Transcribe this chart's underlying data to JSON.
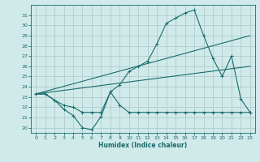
{
  "xlabel": "Humidex (Indice chaleur)",
  "xlim": [
    -0.5,
    23.5
  ],
  "ylim": [
    19.5,
    32.0
  ],
  "yticks": [
    20,
    21,
    22,
    23,
    24,
    25,
    26,
    27,
    28,
    29,
    30,
    31
  ],
  "xticks": [
    0,
    1,
    2,
    3,
    4,
    5,
    6,
    7,
    8,
    9,
    10,
    11,
    12,
    13,
    14,
    15,
    16,
    17,
    18,
    19,
    20,
    21,
    22,
    23
  ],
  "background_color": "#d0eaea",
  "grid_color": "#b8d8d8",
  "line_color": "#1a6b6b",
  "line1_x": [
    0,
    1,
    2,
    3,
    4,
    5,
    6,
    7,
    8,
    9,
    10,
    11,
    12,
    13,
    14,
    15,
    16,
    17,
    18,
    19,
    20,
    21,
    22,
    23
  ],
  "line1_y": [
    23.3,
    23.3,
    22.7,
    21.8,
    21.2,
    20.0,
    19.8,
    21.1,
    23.5,
    22.2,
    21.5,
    21.5,
    21.5,
    21.5,
    21.5,
    21.5,
    21.5,
    21.5,
    21.5,
    21.5,
    21.5,
    21.5,
    21.5,
    21.5
  ],
  "line2_x": [
    0,
    1,
    2,
    3,
    4,
    5,
    6,
    7,
    8,
    9,
    10,
    11,
    12,
    13,
    14,
    15,
    16,
    17,
    18,
    19,
    20,
    21,
    22,
    23
  ],
  "line2_y": [
    23.3,
    23.3,
    22.7,
    22.2,
    22.0,
    21.5,
    21.5,
    21.5,
    23.5,
    24.2,
    25.5,
    26.0,
    26.5,
    28.2,
    30.2,
    30.7,
    31.2,
    31.5,
    29.0,
    26.8,
    25.0,
    27.0,
    22.8,
    21.5
  ],
  "line3_x": [
    0,
    23
  ],
  "line3_y": [
    23.3,
    26.0
  ],
  "line4_x": [
    0,
    23
  ],
  "line4_y": [
    23.3,
    29.0
  ]
}
